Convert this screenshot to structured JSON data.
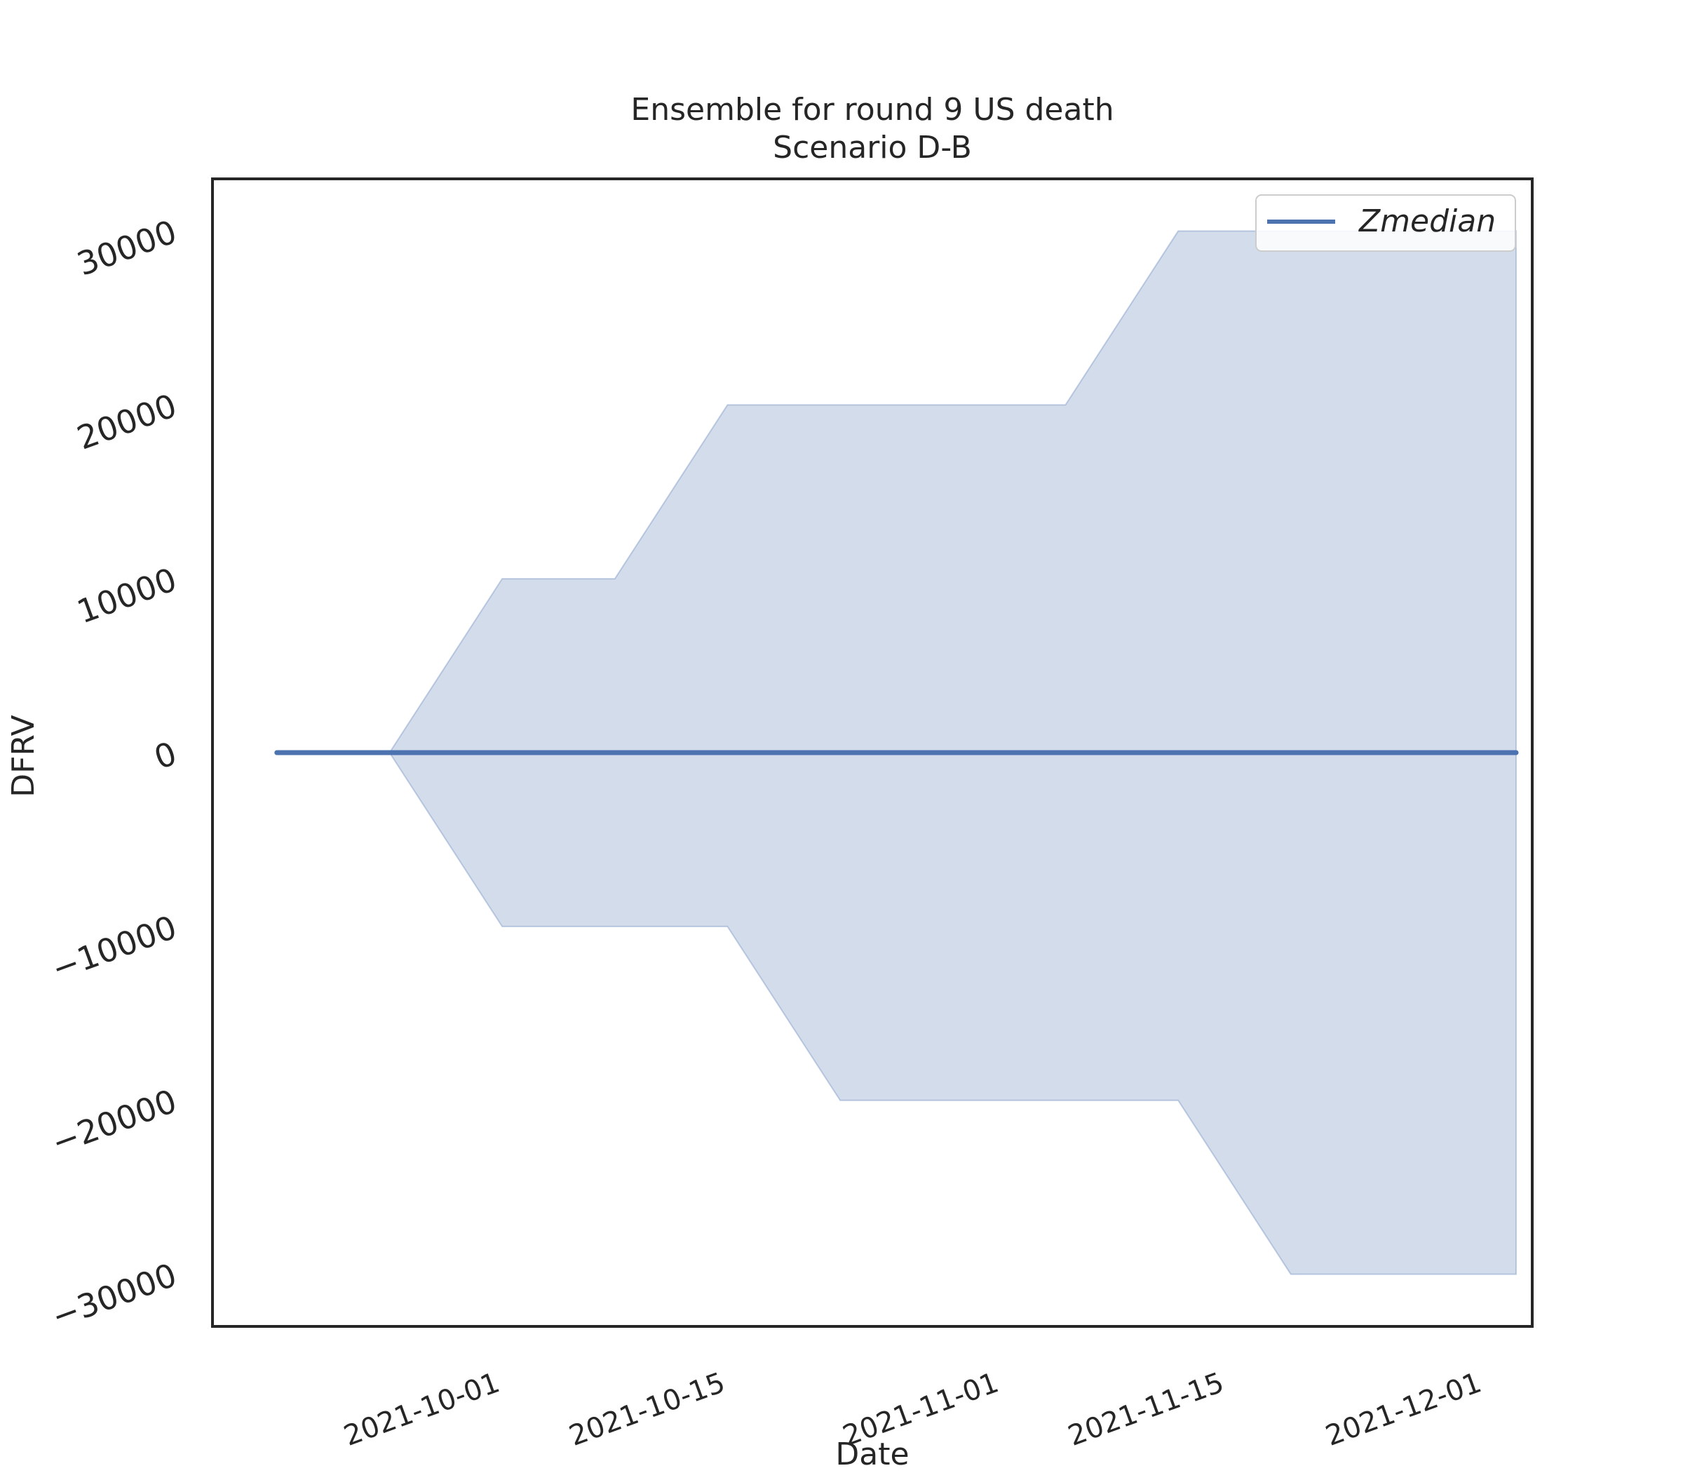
{
  "chart_data": {
    "type": "area",
    "title": "Ensemble for round 9 US death",
    "subtitle": "Scenario D-B",
    "xlabel": "Date",
    "ylabel": "DFRV",
    "x_ticks": [
      "2021-10-01",
      "2021-10-15",
      "2021-11-01",
      "2021-11-15",
      "2021-12-01"
    ],
    "y_ticks": [
      "−30000",
      "−20000",
      "−10000",
      "0",
      "10000",
      "20000",
      "30000"
    ],
    "y_tick_values": [
      -30000,
      -20000,
      -10000,
      0,
      10000,
      20000,
      30000
    ],
    "ylim": [
      -33000,
      33000
    ],
    "xlim": [
      "2021-09-14",
      "2021-12-05"
    ],
    "grid": false,
    "legend": {
      "position": "upper right",
      "entries": [
        "Zmedian"
      ]
    },
    "colors": {
      "line": "#4c72b0",
      "band": "#4c72b0",
      "spine": "#262626"
    },
    "series": [
      {
        "name": "Zmedian",
        "kind": "line",
        "x": [
          "2021-09-18",
          "2021-09-25",
          "2021-10-02",
          "2021-10-09",
          "2021-10-16",
          "2021-10-23",
          "2021-10-30",
          "2021-11-06",
          "2021-11-13",
          "2021-11-20",
          "2021-11-27",
          "2021-12-04"
        ],
        "y": [
          0,
          0,
          0,
          0,
          0,
          0,
          0,
          0,
          0,
          0,
          0,
          0
        ]
      }
    ],
    "band": {
      "x": [
        "2021-09-18",
        "2021-09-25",
        "2021-10-02",
        "2021-10-09",
        "2021-10-16",
        "2021-10-23",
        "2021-10-30",
        "2021-11-06",
        "2021-11-13",
        "2021-11-20",
        "2021-11-27",
        "2021-12-04"
      ],
      "upper": [
        0,
        0,
        10000,
        10000,
        20000,
        20000,
        20000,
        20000,
        30000,
        30000,
        30000,
        30000
      ],
      "lower": [
        0,
        0,
        -10000,
        -10000,
        -10000,
        -20000,
        -20000,
        -20000,
        -20000,
        -30000,
        -30000,
        -30000
      ]
    }
  }
}
